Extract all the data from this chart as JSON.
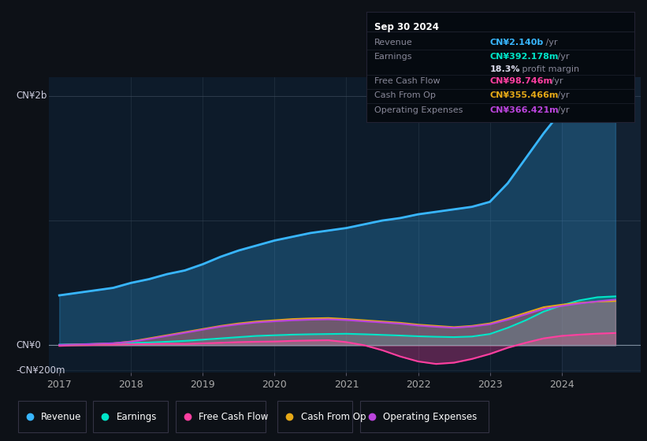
{
  "bg_color": "#0d1117",
  "plot_bg_color": "#0d1b2a",
  "y_label_top": "CN¥2b",
  "y_label_bottom": "-CN¥200m",
  "y_label_zero": "CN¥0",
  "x_ticks": [
    2017,
    2018,
    2019,
    2020,
    2021,
    2022,
    2023,
    2024
  ],
  "colors": {
    "revenue": "#38b6ff",
    "earnings": "#00e5c8",
    "free_cash_flow": "#ff3fa0",
    "cash_from_op": "#e6a817",
    "operating_expenses": "#bb44dd"
  },
  "legend": [
    {
      "label": "Revenue",
      "color": "#38b6ff"
    },
    {
      "label": "Earnings",
      "color": "#00e5c8"
    },
    {
      "label": "Free Cash Flow",
      "color": "#ff3fa0"
    },
    {
      "label": "Cash From Op",
      "color": "#e6a817"
    },
    {
      "label": "Operating Expenses",
      "color": "#bb44dd"
    }
  ],
  "tooltip": {
    "date": "Sep 30 2024",
    "revenue_label": "Revenue",
    "revenue_val": "CN¥2.140b",
    "revenue_unit": "/yr",
    "earnings_label": "Earnings",
    "earnings_val": "CN¥392.178m",
    "earnings_unit": "/yr",
    "profit_pct": "18.3%",
    "profit_text": " profit margin",
    "fcf_label": "Free Cash Flow",
    "fcf_val": "CN¥98.746m",
    "fcf_unit": "/yr",
    "cfo_label": "Cash From Op",
    "cfo_val": "CN¥355.466m",
    "cfo_unit": "/yr",
    "opex_label": "Operating Expenses",
    "opex_val": "CN¥366.421m",
    "opex_unit": "/yr"
  }
}
